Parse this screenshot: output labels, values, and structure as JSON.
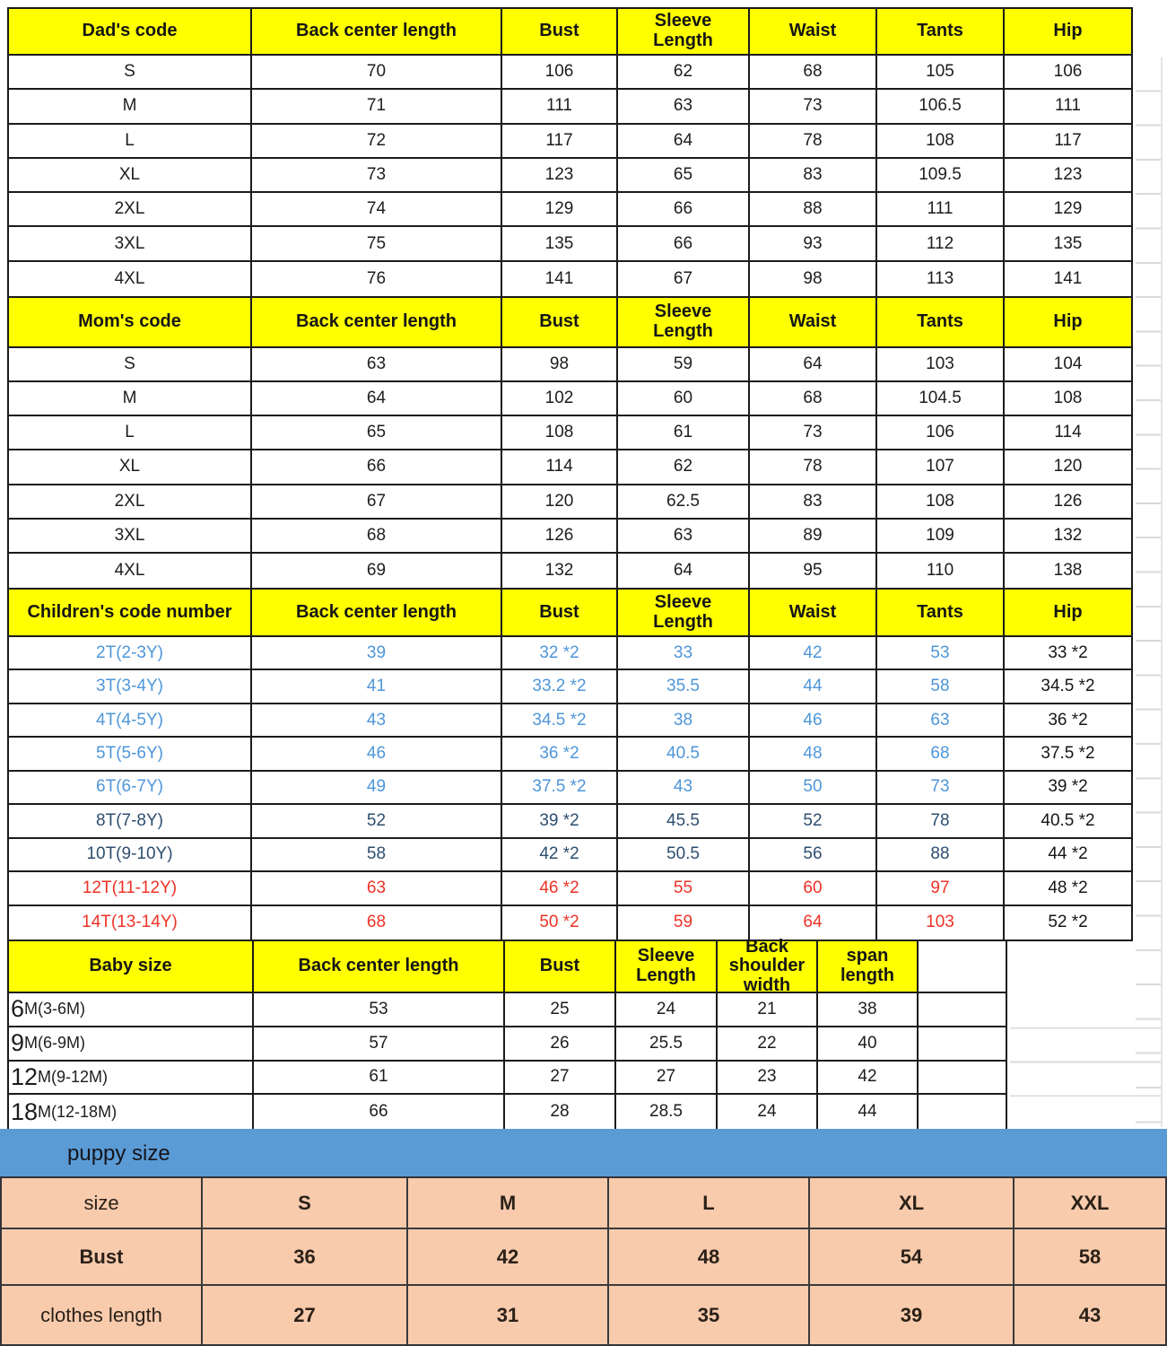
{
  "colors": {
    "header_yellow": "#FFFF00",
    "puppy_bar_blue": "#5B9BD5",
    "puppy_table_pink": "#F8CBAD",
    "child_rows_blue": "#4E96D9",
    "child_rows_navy": "#2E4E6F",
    "child_rows_red": "#EF3226",
    "border_black": "#1b1b1b",
    "gridline_gray": "#d9d9d9"
  },
  "sections": {
    "dad": {
      "headers": [
        "Dad's code",
        "Back center length",
        "Bust",
        "Sleeve\nLength",
        "Waist",
        "Tants",
        "Hip"
      ],
      "rows": [
        {
          "cells": [
            "S",
            "70",
            "106",
            "62",
            "68",
            "105",
            "106"
          ]
        },
        {
          "cells": [
            "M",
            "71",
            "111",
            "63",
            "73",
            "106.5",
            "111"
          ]
        },
        {
          "cells": [
            "L",
            "72",
            "117",
            "64",
            "78",
            "108",
            "117"
          ]
        },
        {
          "cells": [
            "XL",
            "73",
            "123",
            "65",
            "83",
            "109.5",
            "123"
          ]
        },
        {
          "cells": [
            "2XL",
            "74",
            "129",
            "66",
            "88",
            "111",
            "129"
          ]
        },
        {
          "cells": [
            "3XL",
            "75",
            "135",
            "66",
            "93",
            "112",
            "135"
          ]
        },
        {
          "cells": [
            "4XL",
            "76",
            "141",
            "67",
            "98",
            "113",
            "141"
          ]
        }
      ]
    },
    "mom": {
      "headers": [
        "Mom's code",
        "Back center length",
        "Bust",
        "Sleeve\nLength",
        "Waist",
        "Tants",
        "Hip"
      ],
      "rows": [
        {
          "cells": [
            "S",
            "63",
            "98",
            "59",
            "64",
            "103",
            "104"
          ]
        },
        {
          "cells": [
            "M",
            "64",
            "102",
            "60",
            "68",
            "104.5",
            "108"
          ]
        },
        {
          "cells": [
            "L",
            "65",
            "108",
            "61",
            "73",
            "106",
            "114"
          ]
        },
        {
          "cells": [
            "XL",
            "66",
            "114",
            "62",
            "78",
            "107",
            "120"
          ]
        },
        {
          "cells": [
            "2XL",
            "67",
            "120",
            "62.5",
            "83",
            "108",
            "126"
          ]
        },
        {
          "cells": [
            "3XL",
            "68",
            "126",
            "63",
            "89",
            "109",
            "132"
          ]
        },
        {
          "cells": [
            "4XL",
            "69",
            "132",
            "64",
            "95",
            "110",
            "138"
          ]
        }
      ]
    },
    "children": {
      "headers": [
        "Children's code number",
        "Back center length",
        "Bust",
        "Sleeve\nLength",
        "Waist",
        "Tants",
        "Hip"
      ],
      "rows": [
        {
          "color": "blue",
          "cells": [
            "2T(2-3Y)",
            "39",
            "32 *2",
            "33",
            "42",
            "53",
            "33 *2"
          ]
        },
        {
          "color": "blue",
          "cells": [
            "3T(3-4Y)",
            "41",
            "33.2 *2",
            "35.5",
            "44",
            "58",
            "34.5 *2"
          ]
        },
        {
          "color": "blue",
          "cells": [
            "4T(4-5Y)",
            "43",
            "34.5 *2",
            "38",
            "46",
            "63",
            "36 *2"
          ]
        },
        {
          "color": "blue",
          "cells": [
            "5T(5-6Y)",
            "46",
            "36 *2",
            "40.5",
            "48",
            "68",
            "37.5 *2"
          ]
        },
        {
          "color": "blue",
          "cells": [
            "6T(6-7Y)",
            "49",
            "37.5 *2",
            "43",
            "50",
            "73",
            "39 *2"
          ]
        },
        {
          "color": "navy",
          "cells": [
            "8T(7-8Y)",
            "52",
            "39 *2",
            "45.5",
            "52",
            "78",
            "40.5 *2"
          ]
        },
        {
          "color": "navy",
          "cells": [
            "10T(9-10Y)",
            "58",
            "42 *2",
            "50.5",
            "56",
            "88",
            "44 *2"
          ]
        },
        {
          "color": "red",
          "cells": [
            "12T(11-12Y)",
            "63",
            "46 *2",
            "55",
            "60",
            "97",
            "48 *2"
          ]
        },
        {
          "color": "red",
          "cells": [
            "14T(13-14Y)",
            "68",
            "50 *2",
            "59",
            "64",
            "103",
            "52 *2"
          ]
        }
      ]
    },
    "baby": {
      "headers": [
        "Baby size",
        "Back center length",
        "Bust",
        "Sleeve\nLength",
        "Back\nshoulder width",
        "span length",
        ""
      ],
      "rows": [
        {
          "cells": [
            {
              "big": "6",
              "rest": "M(3-6M)"
            },
            "53",
            "25",
            "24",
            "21",
            "38",
            ""
          ]
        },
        {
          "cells": [
            {
              "big": "9",
              "rest": "M(6-9M)"
            },
            "57",
            "26",
            "25.5",
            "22",
            "40",
            ""
          ]
        },
        {
          "cells": [
            {
              "big": "12",
              "rest": "M(9-12M)"
            },
            "61",
            "27",
            "27",
            "23",
            "42",
            ""
          ]
        },
        {
          "cells": [
            {
              "big": "18",
              "rest": "M(12-18M)"
            },
            "66",
            "28",
            "28.5",
            "24",
            "44",
            ""
          ]
        }
      ]
    },
    "puppy": {
      "bar_label": "puppy size",
      "rows": [
        {
          "cells": [
            "size",
            "S",
            "M",
            "L",
            "XL",
            "XXL"
          ]
        },
        {
          "cells": [
            "Bust",
            "36",
            "42",
            "48",
            "54",
            "58"
          ]
        },
        {
          "cells": [
            "clothes length",
            "27",
            "31",
            "35",
            "39",
            "43"
          ]
        }
      ]
    }
  }
}
